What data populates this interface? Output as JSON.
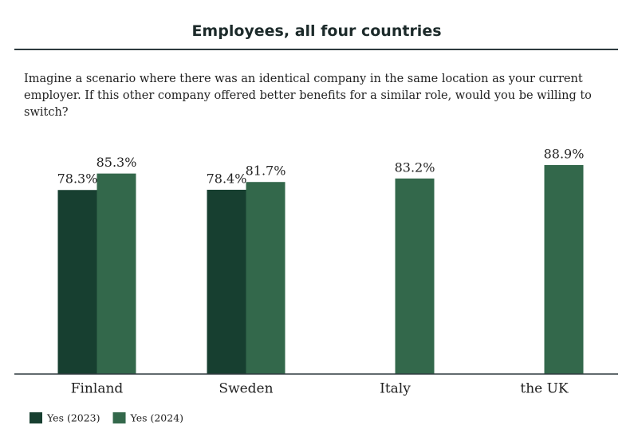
{
  "chart_data": {
    "type": "bar",
    "title": "Employees, all four countries",
    "subtitle": "Imagine a scenario where there was an identical company in the same location as your current employer. If this other company offered better benefits for a similar role, would you be willing to switch?",
    "categories": [
      "Finland",
      "Sweden",
      "Italy",
      "the UK"
    ],
    "series": [
      {
        "name": "Yes (2023)",
        "color": "#173f30",
        "values": [
          78.3,
          78.4,
          null,
          null
        ],
        "value_labels": [
          "78.3%",
          "78.4%",
          null,
          null
        ]
      },
      {
        "name": "Yes (2024)",
        "color": "#33684b",
        "values": [
          85.3,
          81.7,
          83.2,
          88.9
        ],
        "value_labels": [
          "85.3%",
          "81.7%",
          "83.2%",
          "88.9%"
        ]
      }
    ],
    "legend": "bottom-left"
  }
}
